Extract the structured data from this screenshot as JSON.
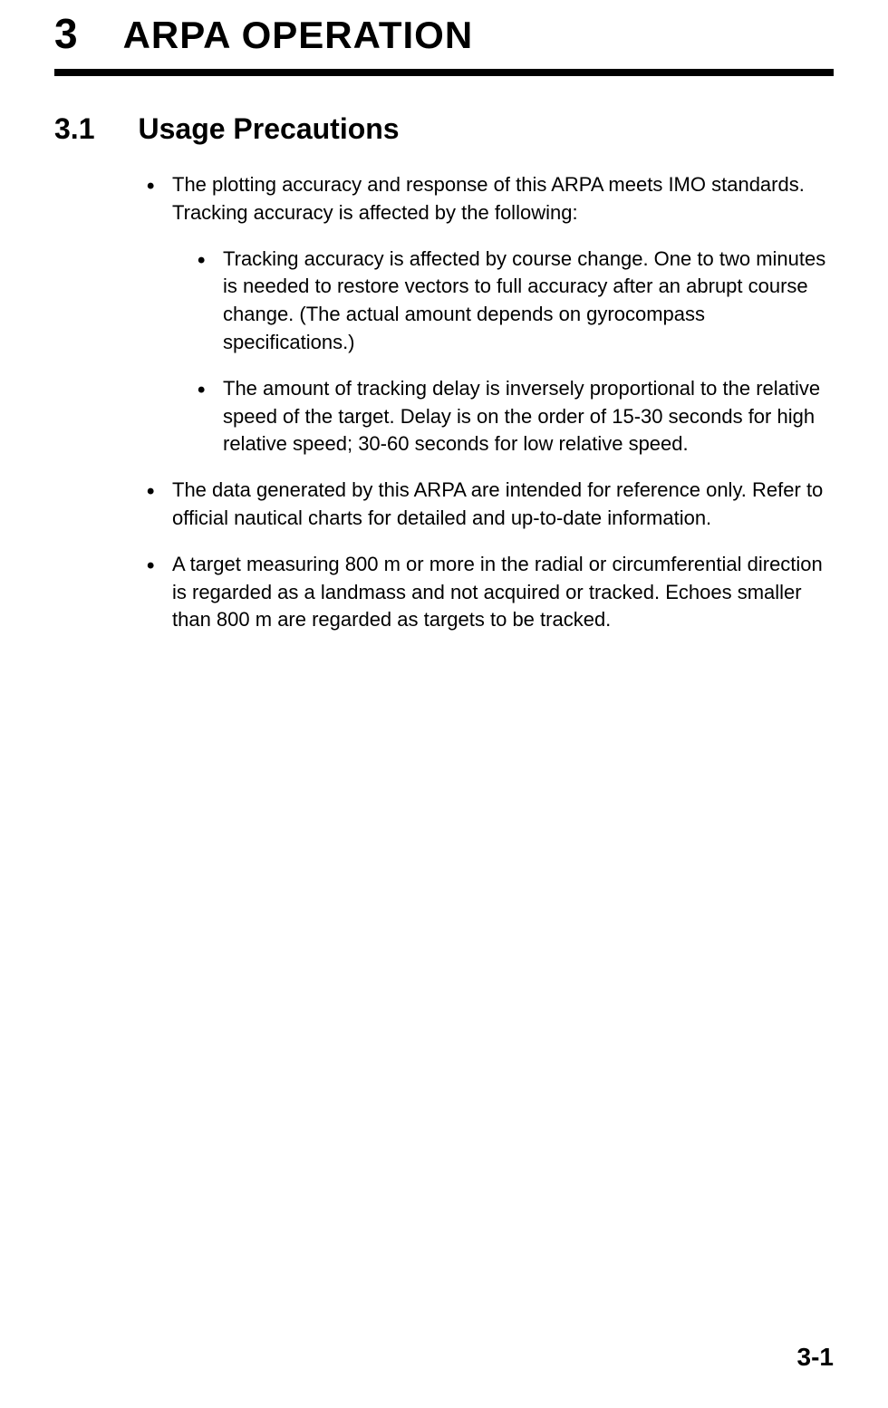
{
  "chapter": {
    "number": "3",
    "title": "ARPA OPERATION"
  },
  "section": {
    "number": "3.1",
    "title": "Usage Precautions"
  },
  "bullets": [
    {
      "text": "The plotting accuracy and response of this ARPA meets IMO standards. Tracking accuracy is affected by the following:",
      "nested": [
        "Tracking accuracy is affected by course change. One to two minutes is needed to restore vectors to full accuracy after an abrupt course change. (The actual amount depends on gyrocompass specifications.)",
        "The amount of tracking delay is inversely proportional to the relative speed of the target. Delay is on the order of 15-30 seconds for high relative speed; 30-60 seconds for low relative speed."
      ]
    },
    {
      "text": "The data generated by this ARPA are intended for reference only. Refer to official nautical charts for detailed and up-to-date information.",
      "nested": []
    },
    {
      "text": "A target measuring 800 m or more in the radial or circumferential direction is regarded as a landmass and not acquired or tracked. Echoes smaller than 800 m are regarded as targets to be tracked.",
      "nested": []
    }
  ],
  "page_number": "3-1"
}
